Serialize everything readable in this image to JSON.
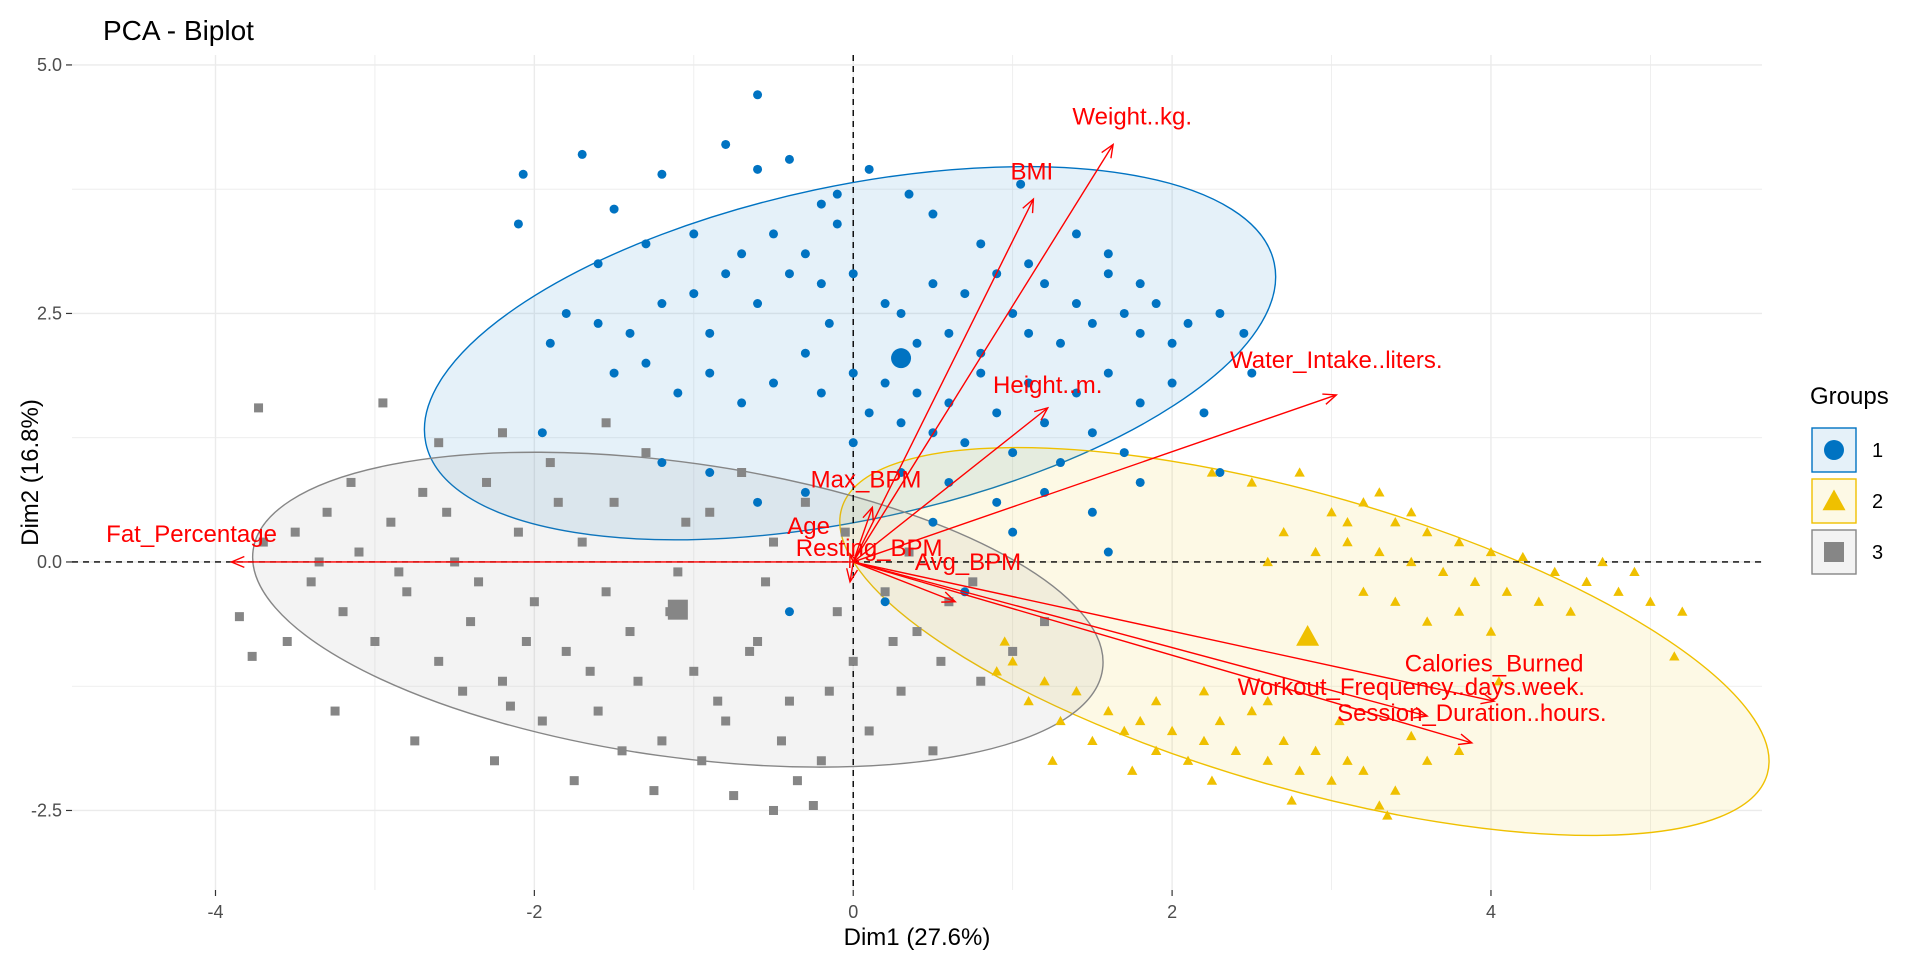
{
  "chart_data": {
    "type": "scatter",
    "title": "PCA - Biplot",
    "xlabel": "Dim1 (27.6%)",
    "ylabel": "Dim2 (16.8%)",
    "xlim": [
      -4.9,
      5.7
    ],
    "ylim": [
      -3.3,
      5.1
    ],
    "xticks": [
      -4,
      -2,
      0,
      2,
      4
    ],
    "xtick_labels": [
      "-4",
      "-2",
      "0",
      "2",
      "4"
    ],
    "yticks": [
      -2.5,
      0.0,
      2.5,
      5.0
    ],
    "ytick_labels": [
      "-2.5",
      "0.0",
      "2.5",
      "5.0"
    ],
    "grid": true,
    "legend": {
      "title": "Groups",
      "position": "right",
      "entries": [
        "1",
        "2",
        "3"
      ]
    },
    "groups": [
      {
        "name": "1",
        "marker": "circle",
        "color": "#0073C2",
        "ellipse": {
          "cx": -0.02,
          "cy": 2.1,
          "rx": 2.72,
          "ry": 1.68,
          "angle_deg": -12
        },
        "centroid": [
          0.3,
          2.05
        ],
        "points": [
          [
            -2.07,
            3.9
          ],
          [
            -1.7,
            4.1
          ],
          [
            -1.5,
            3.55
          ],
          [
            -1.2,
            3.9
          ],
          [
            -0.8,
            4.2
          ],
          [
            -0.6,
            3.95
          ],
          [
            -0.6,
            4.7
          ],
          [
            -0.4,
            4.05
          ],
          [
            0.1,
            3.95
          ],
          [
            -0.1,
            3.7
          ],
          [
            -1.8,
            2.5
          ],
          [
            -1.6,
            2.4
          ],
          [
            -1.4,
            2.3
          ],
          [
            -1.2,
            2.6
          ],
          [
            -1.0,
            2.7
          ],
          [
            -0.9,
            2.3
          ],
          [
            -0.8,
            2.9
          ],
          [
            -0.7,
            3.1
          ],
          [
            -0.6,
            2.6
          ],
          [
            -0.5,
            3.3
          ],
          [
            -0.4,
            2.9
          ],
          [
            -0.3,
            3.1
          ],
          [
            -0.2,
            2.8
          ],
          [
            -0.1,
            3.4
          ],
          [
            0.0,
            2.9
          ],
          [
            0.2,
            2.6
          ],
          [
            0.3,
            2.5
          ],
          [
            0.4,
            2.2
          ],
          [
            0.5,
            2.8
          ],
          [
            0.6,
            2.3
          ],
          [
            0.7,
            2.7
          ],
          [
            0.8,
            2.1
          ],
          [
            0.9,
            2.9
          ],
          [
            1.0,
            2.5
          ],
          [
            1.1,
            2.3
          ],
          [
            1.2,
            2.8
          ],
          [
            1.3,
            2.2
          ],
          [
            1.4,
            2.6
          ],
          [
            1.5,
            2.4
          ],
          [
            1.6,
            2.9
          ],
          [
            1.7,
            2.5
          ],
          [
            1.8,
            2.3
          ],
          [
            1.9,
            2.6
          ],
          [
            2.0,
            2.2
          ],
          [
            2.1,
            2.4
          ],
          [
            2.3,
            2.5
          ],
          [
            2.5,
            1.9
          ],
          [
            -1.5,
            1.9
          ],
          [
            -1.3,
            2.0
          ],
          [
            -1.1,
            1.7
          ],
          [
            -0.9,
            1.9
          ],
          [
            -0.7,
            1.6
          ],
          [
            -0.5,
            1.8
          ],
          [
            -0.3,
            2.1
          ],
          [
            -0.2,
            1.7
          ],
          [
            0.0,
            1.9
          ],
          [
            0.1,
            1.5
          ],
          [
            0.2,
            1.8
          ],
          [
            0.3,
            1.4
          ],
          [
            0.4,
            1.7
          ],
          [
            0.5,
            1.3
          ],
          [
            0.6,
            1.6
          ],
          [
            0.7,
            1.2
          ],
          [
            0.8,
            1.9
          ],
          [
            0.9,
            1.5
          ],
          [
            1.0,
            1.1
          ],
          [
            1.1,
            1.8
          ],
          [
            1.2,
            1.4
          ],
          [
            1.3,
            1.0
          ],
          [
            1.4,
            1.7
          ],
          [
            1.5,
            1.3
          ],
          [
            1.6,
            1.9
          ],
          [
            1.7,
            1.1
          ],
          [
            1.8,
            1.6
          ],
          [
            2.0,
            1.8
          ],
          [
            2.2,
            1.5
          ],
          [
            -1.9,
            2.2
          ],
          [
            -1.6,
            3.0
          ],
          [
            -1.3,
            3.2
          ],
          [
            -1.0,
            3.3
          ],
          [
            -0.2,
            3.6
          ],
          [
            0.5,
            3.5
          ],
          [
            0.8,
            3.2
          ],
          [
            1.1,
            3.0
          ],
          [
            1.4,
            3.3
          ],
          [
            1.6,
            3.1
          ],
          [
            1.8,
            2.8
          ],
          [
            0.3,
            0.9
          ],
          [
            0.6,
            0.8
          ],
          [
            0.9,
            0.6
          ],
          [
            1.2,
            0.7
          ],
          [
            1.5,
            0.5
          ],
          [
            1.8,
            0.8
          ],
          [
            -0.9,
            0.9
          ],
          [
            -0.6,
            0.6
          ],
          [
            -1.2,
            1.0
          ],
          [
            -0.3,
            0.7
          ],
          [
            0.0,
            1.2
          ],
          [
            2.3,
            0.9
          ],
          [
            1.0,
            0.3
          ],
          [
            0.7,
            -0.3
          ],
          [
            0.2,
            -0.4
          ],
          [
            -0.4,
            -0.5
          ],
          [
            1.6,
            0.1
          ],
          [
            0.5,
            0.4
          ],
          [
            -1.95,
            1.3
          ],
          [
            -0.15,
            2.4
          ],
          [
            0.35,
            3.7
          ],
          [
            1.05,
            3.8
          ],
          [
            -2.1,
            3.4
          ],
          [
            2.45,
            2.3
          ]
        ]
      },
      {
        "name": "2",
        "marker": "triangle",
        "color": "#EFC000",
        "ellipse": {
          "cx": 2.83,
          "cy": -0.8,
          "rx": 3.02,
          "ry": 1.48,
          "angle_deg": 16
        },
        "centroid": [
          2.85,
          -0.75
        ],
        "points": [
          [
            2.25,
            0.9
          ],
          [
            2.5,
            0.8
          ],
          [
            2.8,
            0.9
          ],
          [
            3.0,
            0.5
          ],
          [
            3.2,
            0.6
          ],
          [
            3.4,
            0.4
          ],
          [
            3.6,
            0.3
          ],
          [
            3.8,
            0.2
          ],
          [
            4.0,
            0.1
          ],
          [
            4.2,
            0.05
          ],
          [
            4.4,
            -0.1
          ],
          [
            4.6,
            -0.2
          ],
          [
            4.8,
            -0.3
          ],
          [
            5.0,
            -0.4
          ],
          [
            5.2,
            -0.5
          ],
          [
            3.1,
            0.2
          ],
          [
            3.3,
            0.1
          ],
          [
            3.5,
            0.0
          ],
          [
            3.7,
            -0.1
          ],
          [
            3.9,
            -0.2
          ],
          [
            4.1,
            -0.3
          ],
          [
            4.3,
            -0.4
          ],
          [
            4.5,
            -0.5
          ],
          [
            3.2,
            -0.3
          ],
          [
            3.4,
            -0.4
          ],
          [
            3.6,
            -0.6
          ],
          [
            3.8,
            -0.5
          ],
          [
            4.0,
            -0.7
          ],
          [
            2.7,
            0.3
          ],
          [
            2.9,
            0.1
          ],
          [
            3.1,
            0.4
          ],
          [
            3.3,
            0.7
          ],
          [
            3.5,
            0.5
          ],
          [
            2.6,
            0.0
          ],
          [
            4.7,
            0.0
          ],
          [
            4.9,
            -0.1
          ],
          [
            5.15,
            -0.95
          ],
          [
            1.0,
            -1.0
          ],
          [
            1.2,
            -1.2
          ],
          [
            1.4,
            -1.3
          ],
          [
            1.6,
            -1.5
          ],
          [
            1.8,
            -1.6
          ],
          [
            2.0,
            -1.7
          ],
          [
            2.2,
            -1.8
          ],
          [
            2.4,
            -1.9
          ],
          [
            2.6,
            -2.0
          ],
          [
            2.8,
            -2.1
          ],
          [
            3.0,
            -2.2
          ],
          [
            3.2,
            -2.1
          ],
          [
            3.4,
            -2.3
          ],
          [
            3.6,
            -2.0
          ],
          [
            3.8,
            -1.9
          ],
          [
            1.5,
            -1.8
          ],
          [
            1.7,
            -1.7
          ],
          [
            1.9,
            -1.9
          ],
          [
            2.1,
            -2.0
          ],
          [
            2.3,
            -1.6
          ],
          [
            2.5,
            -1.5
          ],
          [
            2.7,
            -1.8
          ],
          [
            2.9,
            -1.9
          ],
          [
            3.1,
            -2.0
          ],
          [
            1.3,
            -1.6
          ],
          [
            1.1,
            -1.4
          ],
          [
            0.9,
            -1.1
          ],
          [
            1.25,
            -2.0
          ],
          [
            1.75,
            -2.1
          ],
          [
            2.25,
            -2.2
          ],
          [
            2.75,
            -2.4
          ],
          [
            3.3,
            -2.45
          ],
          [
            3.35,
            -2.55
          ],
          [
            1.9,
            -1.4
          ],
          [
            2.2,
            -1.3
          ],
          [
            2.6,
            -1.4
          ],
          [
            3.05,
            -1.6
          ],
          [
            3.5,
            -1.75
          ],
          [
            4.05,
            -1.2
          ],
          [
            0.95,
            -0.8
          ]
        ]
      },
      {
        "name": "3",
        "marker": "square",
        "color": "#868686",
        "ellipse": {
          "cx": -1.1,
          "cy": -0.48,
          "rx": 2.69,
          "ry": 1.48,
          "angle_deg": 8
        },
        "centroid": [
          -1.1,
          -0.48
        ],
        "points": [
          [
            -3.73,
            1.55
          ],
          [
            -3.85,
            -0.55
          ],
          [
            -3.77,
            -0.95
          ],
          [
            -3.7,
            0.2
          ],
          [
            -3.5,
            0.3
          ],
          [
            -3.4,
            -0.2
          ],
          [
            -3.3,
            0.5
          ],
          [
            -3.2,
            -0.5
          ],
          [
            -3.1,
            0.1
          ],
          [
            -3.0,
            -0.8
          ],
          [
            -2.9,
            0.4
          ],
          [
            -2.8,
            -0.3
          ],
          [
            -2.7,
            0.7
          ],
          [
            -2.6,
            -1.0
          ],
          [
            -2.5,
            0.0
          ],
          [
            -2.4,
            -0.6
          ],
          [
            -2.3,
            0.8
          ],
          [
            -2.2,
            -1.2
          ],
          [
            -2.1,
            0.3
          ],
          [
            -2.0,
            -0.4
          ],
          [
            -1.9,
            1.0
          ],
          [
            -1.8,
            -0.9
          ],
          [
            -1.7,
            0.2
          ],
          [
            -1.6,
            -1.5
          ],
          [
            -1.5,
            0.6
          ],
          [
            -1.4,
            -0.7
          ],
          [
            -1.3,
            1.1
          ],
          [
            -1.2,
            -1.8
          ],
          [
            -1.1,
            -0.1
          ],
          [
            -1.0,
            -1.1
          ],
          [
            -0.9,
            0.5
          ],
          [
            -0.8,
            -1.6
          ],
          [
            -0.7,
            0.9
          ],
          [
            -0.6,
            -0.8
          ],
          [
            -0.5,
            0.2
          ],
          [
            -0.4,
            -1.4
          ],
          [
            -0.3,
            0.6
          ],
          [
            -0.2,
            -2.0
          ],
          [
            -0.1,
            -0.5
          ],
          [
            0.0,
            -1.0
          ],
          [
            0.1,
            -1.7
          ],
          [
            0.2,
            -0.3
          ],
          [
            0.3,
            -1.3
          ],
          [
            0.4,
            -0.7
          ],
          [
            0.5,
            -1.9
          ],
          [
            0.6,
            -0.4
          ],
          [
            0.8,
            -1.2
          ],
          [
            1.0,
            -0.9
          ],
          [
            1.2,
            -0.6
          ],
          [
            -2.95,
            1.6
          ],
          [
            -2.6,
            1.2
          ],
          [
            -2.2,
            1.3
          ],
          [
            -1.55,
            1.4
          ],
          [
            -3.25,
            -1.5
          ],
          [
            -2.75,
            -1.8
          ],
          [
            -2.25,
            -2.0
          ],
          [
            -1.75,
            -2.2
          ],
          [
            -1.25,
            -2.3
          ],
          [
            -0.75,
            -2.35
          ],
          [
            -0.25,
            -2.45
          ],
          [
            -0.5,
            -2.5
          ],
          [
            -2.45,
            -1.3
          ],
          [
            -1.95,
            -1.6
          ],
          [
            -1.45,
            -1.9
          ],
          [
            -0.95,
            -2.0
          ],
          [
            -0.45,
            -1.8
          ],
          [
            -3.55,
            -0.8
          ],
          [
            -3.15,
            0.8
          ],
          [
            -2.55,
            0.5
          ],
          [
            -2.05,
            -0.8
          ],
          [
            -1.55,
            -0.3
          ],
          [
            -1.05,
            0.4
          ],
          [
            -0.55,
            -0.2
          ],
          [
            -0.05,
            0.3
          ],
          [
            0.35,
            0.1
          ],
          [
            0.75,
            -0.2
          ],
          [
            -1.35,
            -1.2
          ],
          [
            -0.85,
            -1.4
          ],
          [
            -2.35,
            -0.2
          ],
          [
            -1.85,
            0.6
          ],
          [
            -1.65,
            -1.1
          ],
          [
            -1.15,
            -0.5
          ],
          [
            -0.65,
            -0.9
          ],
          [
            -0.15,
            -1.3
          ],
          [
            0.25,
            -0.8
          ],
          [
            -3.35,
            0.0
          ],
          [
            -2.85,
            -0.1
          ],
          [
            -2.15,
            -1.45
          ],
          [
            -0.35,
            -2.2
          ],
          [
            0.55,
            -1.0
          ]
        ]
      }
    ],
    "variables": [
      {
        "name": "Weight..kg.",
        "x": 1.63,
        "y": 4.2,
        "label_x": 1.75,
        "label_y": 4.4
      },
      {
        "name": "BMI",
        "x": 1.13,
        "y": 3.65,
        "label_x": 1.12,
        "label_y": 3.85
      },
      {
        "name": "Height..m.",
        "x": 1.22,
        "y": 1.55,
        "label_x": 1.22,
        "label_y": 1.7
      },
      {
        "name": "Water_Intake..liters.",
        "x": 3.03,
        "y": 1.68,
        "label_x": 3.03,
        "label_y": 1.95
      },
      {
        "name": "Max_BPM",
        "x": 0.12,
        "y": 0.55,
        "label_x": 0.08,
        "label_y": 0.75
      },
      {
        "name": "Age",
        "x": -0.02,
        "y": 0.08,
        "label_x": -0.28,
        "label_y": 0.28
      },
      {
        "name": "Resting_BPM",
        "x": -0.02,
        "y": -0.2,
        "label_x": 0.1,
        "label_y": 0.06
      },
      {
        "name": "Avg_BPM",
        "x": 0.64,
        "y": -0.4,
        "label_x": 0.72,
        "label_y": -0.08
      },
      {
        "name": "Calories_Burned",
        "x": 4.02,
        "y": -1.4,
        "label_x": 4.02,
        "label_y": -1.1
      },
      {
        "name": "Workout_Frequency..days.week.",
        "x": 3.6,
        "y": -1.55,
        "label_x": 3.5,
        "label_y": -1.34
      },
      {
        "name": "Session_Duration..hours.",
        "x": 3.88,
        "y": -1.82,
        "label_x": 3.88,
        "label_y": -1.6
      },
      {
        "name": "Fat_Percentage",
        "x": -3.9,
        "y": 0.0,
        "label_x": -4.15,
        "label_y": 0.2
      }
    ]
  }
}
